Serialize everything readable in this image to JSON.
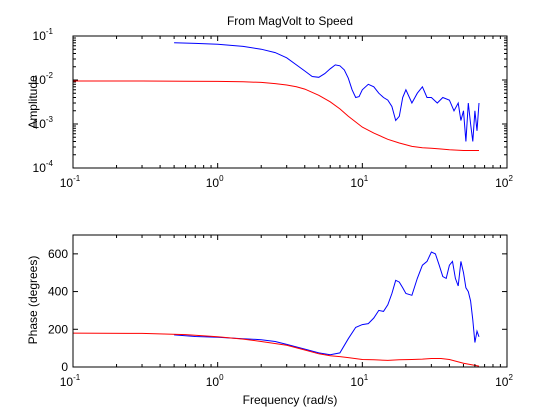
{
  "chart_data": [
    {
      "type": "line",
      "title": "From MagVolt to Speed",
      "xlabel": "",
      "ylabel": "Amplitude",
      "xscale": "log",
      "yscale": "log",
      "xlim": [
        0.1,
        100
      ],
      "ylim": [
        0.0001,
        0.1
      ],
      "x_tick_labels": [
        {
          "base": "10",
          "exp": "-1"
        },
        {
          "base": "10",
          "exp": "0"
        },
        {
          "base": "10",
          "exp": "1"
        },
        {
          "base": "10",
          "exp": "2"
        }
      ],
      "y_tick_labels": [
        {
          "base": "10",
          "exp": "-4"
        },
        {
          "base": "10",
          "exp": "-3"
        },
        {
          "base": "10",
          "exp": "-2"
        },
        {
          "base": "10",
          "exp": "-1"
        }
      ],
      "grid": false,
      "series": [
        {
          "color": "#0000ff",
          "x": [
            0.5,
            0.7,
            1,
            1.5,
            2,
            2.5,
            3,
            3.5,
            4,
            4.5,
            5,
            5.5,
            6,
            6.5,
            7,
            7.5,
            8,
            8.5,
            9,
            9.5,
            10,
            11,
            12,
            13,
            14,
            15,
            16,
            17,
            18,
            19,
            20,
            22,
            24,
            26,
            28,
            30,
            33,
            36,
            40,
            43,
            46,
            48,
            50,
            52,
            54,
            56,
            58,
            60,
            62,
            64
          ],
          "y": [
            0.07,
            0.068,
            0.065,
            0.058,
            0.05,
            0.042,
            0.032,
            0.022,
            0.016,
            0.012,
            0.0115,
            0.014,
            0.018,
            0.022,
            0.021,
            0.017,
            0.011,
            0.006,
            0.004,
            0.0042,
            0.006,
            0.008,
            0.007,
            0.005,
            0.004,
            0.0035,
            0.0025,
            0.0012,
            0.0015,
            0.004,
            0.006,
            0.003,
            0.005,
            0.007,
            0.004,
            0.004,
            0.003,
            0.004,
            0.0035,
            0.002,
            0.003,
            0.0012,
            0.002,
            0.0004,
            0.003,
            0.001,
            0.0004,
            0.002,
            0.0007,
            0.003
          ]
        },
        {
          "color": "#ff0000",
          "x": [
            0.1,
            0.3,
            0.6,
            1,
            1.5,
            2,
            2.5,
            3,
            3.5,
            4,
            5,
            6,
            7,
            8,
            10,
            12,
            15,
            18,
            22,
            26,
            30,
            35,
            40,
            50,
            64
          ],
          "y": [
            0.0095,
            0.0095,
            0.0094,
            0.0093,
            0.0091,
            0.0088,
            0.0083,
            0.0077,
            0.007,
            0.0062,
            0.0045,
            0.0032,
            0.0022,
            0.0015,
            0.00085,
            0.00062,
            0.00045,
            0.00037,
            0.00031,
            0.00029,
            0.00028,
            0.00027,
            0.00026,
            0.00025,
            0.00025
          ]
        }
      ]
    },
    {
      "type": "line",
      "title": "",
      "xlabel": "Frequency (rad/s)",
      "ylabel": "Phase (degrees)",
      "xscale": "log",
      "yscale": "linear",
      "xlim": [
        0.1,
        100
      ],
      "ylim": [
        0,
        700
      ],
      "x_tick_labels": [
        {
          "base": "10",
          "exp": "-1"
        },
        {
          "base": "10",
          "exp": "0"
        },
        {
          "base": "10",
          "exp": "1"
        },
        {
          "base": "10",
          "exp": "2"
        }
      ],
      "y_ticks": [
        0,
        200,
        400,
        600
      ],
      "y_tick_labels": [
        "0",
        "200",
        "400",
        "600"
      ],
      "grid": false,
      "series": [
        {
          "color": "#0000ff",
          "x": [
            0.5,
            0.7,
            1,
            1.5,
            2,
            2.5,
            3,
            4,
            5,
            6,
            7,
            8,
            9,
            10,
            11,
            12,
            13,
            14,
            15,
            16,
            17,
            18,
            19,
            20,
            22,
            24,
            26,
            28,
            30,
            32,
            34,
            36,
            38,
            40,
            42,
            44,
            46,
            48,
            50,
            52,
            54,
            56,
            58,
            60,
            62,
            64
          ],
          "y": [
            170,
            162,
            158,
            150,
            145,
            135,
            120,
            95,
            75,
            65,
            75,
            150,
            210,
            225,
            230,
            260,
            300,
            295,
            330,
            390,
            460,
            450,
            420,
            390,
            380,
            470,
            540,
            560,
            610,
            600,
            540,
            480,
            470,
            540,
            560,
            470,
            430,
            560,
            500,
            420,
            400,
            350,
            250,
            130,
            190,
            160
          ]
        },
        {
          "color": "#ff0000",
          "x": [
            0.1,
            0.3,
            0.6,
            1,
            1.5,
            2,
            3,
            4,
            5,
            6,
            7,
            8,
            10,
            12,
            15,
            18,
            22,
            26,
            30,
            35,
            40,
            50,
            64
          ],
          "y": [
            180,
            178,
            172,
            160,
            148,
            135,
            115,
            90,
            70,
            60,
            55,
            50,
            40,
            38,
            35,
            38,
            40,
            42,
            45,
            45,
            40,
            20,
            5
          ]
        }
      ]
    }
  ]
}
